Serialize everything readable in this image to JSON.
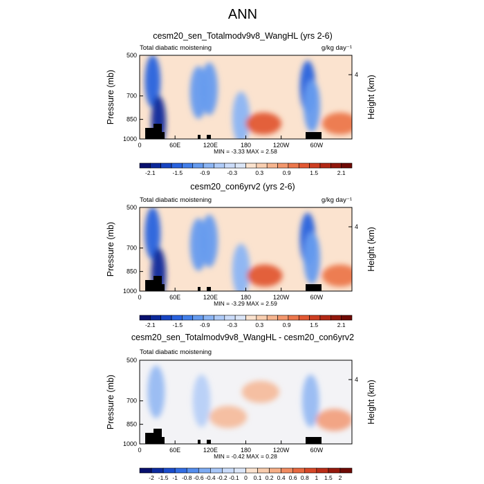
{
  "figure_title": "ANN",
  "chart_data": [
    {
      "type": "heatmap",
      "title": "cesm20_sen_Totalmodv9v8_WangHL (yrs 2-6)",
      "left_label": "Total diabatic moistening",
      "units": "g/kg day⁻¹",
      "ylabel": "Pressure (mb)",
      "ylabel_right": "Height (km)",
      "yticks": [
        "500",
        "700",
        "850",
        "1000"
      ],
      "ytick_values": [
        500,
        700,
        850,
        1000
      ],
      "yticks_right": [
        "4"
      ],
      "xticks": [
        "0",
        "60E",
        "120E",
        "180",
        "120W",
        "60W"
      ],
      "xtick_values": [
        0,
        60,
        120,
        180,
        240,
        300
      ],
      "xlim": [
        0,
        360
      ],
      "ylim": [
        1000,
        500
      ],
      "stats": "MIN =  -3.33  MAX =   2.58",
      "colorbar_labels": [
        "-2.1",
        "-1.5",
        "-0.9",
        "-0.3",
        "0.3",
        "0.9",
        "1.5",
        "2.1"
      ],
      "colorbar_levels": 20,
      "features": [
        {
          "lon": 22,
          "p": 620,
          "value": -2.0
        },
        {
          "lon": 32,
          "p": 870,
          "value": -2.6
        },
        {
          "lon": 100,
          "p": 680,
          "value": -1.2
        },
        {
          "lon": 118,
          "p": 660,
          "value": -1.3
        },
        {
          "lon": 172,
          "p": 840,
          "value": -1.0
        },
        {
          "lon": 210,
          "p": 880,
          "value": 1.6
        },
        {
          "lon": 285,
          "p": 650,
          "value": -2.0
        },
        {
          "lon": 292,
          "p": 760,
          "value": -1.5
        },
        {
          "lon": 340,
          "p": 880,
          "value": 1.4
        }
      ]
    },
    {
      "type": "heatmap",
      "title": "cesm20_con6yrv2 (yrs 2-6)",
      "left_label": "Total diabatic moistening",
      "units": "g/kg day⁻¹",
      "ylabel": "Pressure (mb)",
      "ylabel_right": "Height (km)",
      "yticks": [
        "500",
        "700",
        "850",
        "1000"
      ],
      "ytick_values": [
        500,
        700,
        850,
        1000
      ],
      "yticks_right": [
        "4"
      ],
      "xticks": [
        "0",
        "60E",
        "120E",
        "180",
        "120W",
        "60W"
      ],
      "xtick_values": [
        0,
        60,
        120,
        180,
        240,
        300
      ],
      "xlim": [
        0,
        360
      ],
      "ylim": [
        1000,
        500
      ],
      "stats": "MIN =  -3.29  MAX =   2.59",
      "colorbar_labels": [
        "-2.1",
        "-1.5",
        "-0.9",
        "-0.3",
        "0.3",
        "0.9",
        "1.5",
        "2.1"
      ],
      "colorbar_levels": 20,
      "features": [
        {
          "lon": 22,
          "p": 620,
          "value": -2.0
        },
        {
          "lon": 32,
          "p": 870,
          "value": -2.5
        },
        {
          "lon": 100,
          "p": 680,
          "value": -1.2
        },
        {
          "lon": 118,
          "p": 660,
          "value": -1.2
        },
        {
          "lon": 172,
          "p": 840,
          "value": -0.9
        },
        {
          "lon": 212,
          "p": 880,
          "value": 1.7
        },
        {
          "lon": 285,
          "p": 650,
          "value": -2.0
        },
        {
          "lon": 292,
          "p": 760,
          "value": -1.5
        },
        {
          "lon": 340,
          "p": 880,
          "value": 1.3
        }
      ]
    },
    {
      "type": "heatmap",
      "title": "cesm20_sen_Totalmodv9v8_WangHL - cesm20_con6yrv2",
      "left_label": "Total diabatic moistening",
      "units": "",
      "ylabel": "Pressure (mb)",
      "ylabel_right": "Height (km)",
      "yticks": [
        "500",
        "700",
        "850",
        "1000"
      ],
      "ytick_values": [
        500,
        700,
        850,
        1000
      ],
      "yticks_right": [
        "4"
      ],
      "xticks": [
        "0",
        "60E",
        "120E",
        "180",
        "120W",
        "60W"
      ],
      "xtick_values": [
        0,
        60,
        120,
        180,
        240,
        300
      ],
      "xlim": [
        0,
        360
      ],
      "ylim": [
        1000,
        500
      ],
      "stats": "MIN =  -0.42  MAX =   0.28",
      "colorbar_labels": [
        "-2",
        "-1.5",
        "-1",
        "-0.8",
        "-0.6",
        "-0.4",
        "-0.2",
        "-0.1",
        "0",
        "0.1",
        "0.2",
        "0.4",
        "0.6",
        "0.8",
        "1",
        "1.5",
        "2"
      ],
      "colorbar_levels": 18,
      "features": [
        {
          "lon": 28,
          "p": 650,
          "value": -0.2
        },
        {
          "lon": 105,
          "p": 700,
          "value": -0.15
        },
        {
          "lon": 150,
          "p": 800,
          "value": 0.1
        },
        {
          "lon": 205,
          "p": 650,
          "value": 0.1
        },
        {
          "lon": 290,
          "p": 700,
          "value": -0.2
        },
        {
          "lon": 330,
          "p": 820,
          "value": 0.2
        }
      ]
    }
  ],
  "colors": {
    "background": "#ffffff",
    "terrain": "#000000",
    "neutral_neg": "#dbe6f8",
    "neutral_pos": "#fbe3cf"
  }
}
